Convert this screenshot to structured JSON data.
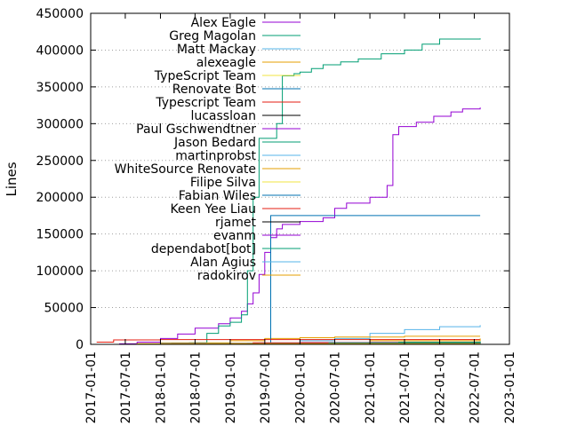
{
  "chart_data": {
    "type": "line",
    "title": "",
    "xlabel": "",
    "ylabel": "Lines",
    "x_axis": {
      "type": "date",
      "range": [
        "2017-01-01",
        "2023-01-01"
      ],
      "ticks": [
        "2017-01-01",
        "2017-07-01",
        "2018-01-01",
        "2018-07-01",
        "2019-01-01",
        "2019-07-01",
        "2020-01-01",
        "2020-07-01",
        "2021-01-01",
        "2021-07-01",
        "2022-01-01",
        "2022-07-01",
        "2023-01-01"
      ]
    },
    "y_axis": {
      "range": [
        0,
        450000
      ],
      "ticks": [
        0,
        50000,
        100000,
        150000,
        200000,
        250000,
        300000,
        350000,
        400000,
        450000
      ]
    },
    "grid": "y-dotted",
    "legend_position": "top-left",
    "series": [
      {
        "name": "Alex Eagle",
        "color": "#9400d3",
        "points": [
          [
            "2017-05-01",
            0
          ],
          [
            "2017-09-01",
            3000
          ],
          [
            "2018-01-01",
            8000
          ],
          [
            "2018-04-01",
            14000
          ],
          [
            "2018-07-01",
            22000
          ],
          [
            "2018-11-01",
            28000
          ],
          [
            "2019-01-01",
            36000
          ],
          [
            "2019-03-01",
            45000
          ],
          [
            "2019-04-01",
            55000
          ],
          [
            "2019-05-01",
            70000
          ],
          [
            "2019-06-01",
            95000
          ],
          [
            "2019-07-01",
            125000
          ],
          [
            "2019-08-01",
            145000
          ],
          [
            "2019-09-01",
            157000
          ],
          [
            "2019-10-01",
            163000
          ],
          [
            "2020-01-01",
            167000
          ],
          [
            "2020-05-01",
            172000
          ],
          [
            "2020-07-01",
            185000
          ],
          [
            "2020-09-01",
            192000
          ],
          [
            "2021-01-01",
            200000
          ],
          [
            "2021-04-01",
            216000
          ],
          [
            "2021-05-01",
            285000
          ],
          [
            "2021-06-01",
            296000
          ],
          [
            "2021-09-01",
            302000
          ],
          [
            "2021-12-01",
            310000
          ],
          [
            "2022-03-01",
            316000
          ],
          [
            "2022-05-01",
            320000
          ],
          [
            "2022-08-01",
            322000
          ]
        ]
      },
      {
        "name": "Greg Magolan",
        "color": "#009e73",
        "points": [
          [
            "2017-10-01",
            0
          ],
          [
            "2018-06-01",
            2000
          ],
          [
            "2018-09-01",
            15000
          ],
          [
            "2018-11-01",
            25000
          ],
          [
            "2019-01-01",
            30000
          ],
          [
            "2019-03-01",
            40000
          ],
          [
            "2019-04-01",
            100000
          ],
          [
            "2019-05-01",
            200000
          ],
          [
            "2019-06-01",
            280000
          ],
          [
            "2019-09-01",
            300000
          ],
          [
            "2019-10-01",
            365000
          ],
          [
            "2019-12-01",
            368000
          ],
          [
            "2020-01-01",
            370000
          ],
          [
            "2020-03-01",
            375000
          ],
          [
            "2020-05-01",
            380000
          ],
          [
            "2020-08-01",
            384000
          ],
          [
            "2020-11-01",
            388000
          ],
          [
            "2021-03-01",
            395000
          ],
          [
            "2021-07-01",
            400000
          ],
          [
            "2021-10-01",
            408000
          ],
          [
            "2022-01-01",
            415000
          ],
          [
            "2022-08-01",
            416000
          ]
        ]
      },
      {
        "name": "Matt Mackay",
        "color": "#56b4e9",
        "points": [
          [
            "2018-01-01",
            0
          ],
          [
            "2019-06-01",
            2000
          ],
          [
            "2020-01-01",
            5000
          ],
          [
            "2020-07-01",
            8000
          ],
          [
            "2021-01-01",
            15000
          ],
          [
            "2021-07-01",
            20000
          ],
          [
            "2022-01-01",
            24000
          ],
          [
            "2022-08-01",
            26000
          ]
        ]
      },
      {
        "name": "alexeagle",
        "color": "#e69f00",
        "points": [
          [
            "2017-07-01",
            0
          ],
          [
            "2018-01-01",
            2000
          ],
          [
            "2019-01-01",
            5000
          ],
          [
            "2019-07-01",
            8000
          ],
          [
            "2020-01-01",
            9000
          ],
          [
            "2020-07-01",
            10000
          ],
          [
            "2021-07-01",
            11000
          ],
          [
            "2022-08-01",
            11000
          ]
        ]
      },
      {
        "name": "TypeScript Team",
        "color": "#f0e442",
        "points": [
          [
            "2017-12-01",
            0
          ],
          [
            "2018-06-01",
            800
          ],
          [
            "2019-06-01",
            1500
          ],
          [
            "2022-08-01",
            2000
          ]
        ]
      },
      {
        "name": "Renovate Bot",
        "color": "#0072b2",
        "points": [
          [
            "2019-07-01",
            0
          ],
          [
            "2019-08-01",
            175000
          ],
          [
            "2022-08-01",
            175000
          ]
        ]
      },
      {
        "name": "Typescript Team",
        "color": "#e51e10",
        "points": [
          [
            "2017-02-01",
            3000
          ],
          [
            "2017-05-01",
            6000
          ],
          [
            "2018-01-01",
            6500
          ],
          [
            "2022-08-01",
            6500
          ]
        ]
      },
      {
        "name": "lucassloan",
        "color": "#000000",
        "points": [
          [
            "2019-04-01",
            0
          ],
          [
            "2019-10-01",
            1500
          ],
          [
            "2021-01-01",
            2500
          ],
          [
            "2022-08-01",
            3500
          ]
        ]
      },
      {
        "name": "Paul Gschwendtner",
        "color": "#9400d3",
        "points": [
          [
            "2018-02-01",
            0
          ],
          [
            "2019-01-01",
            1500
          ],
          [
            "2020-01-01",
            2500
          ],
          [
            "2022-08-01",
            3000
          ]
        ]
      },
      {
        "name": "Jason Bedard",
        "color": "#009e73",
        "points": [
          [
            "2019-06-01",
            0
          ],
          [
            "2020-06-01",
            1500
          ],
          [
            "2021-06-01",
            3000
          ],
          [
            "2022-08-01",
            4000
          ]
        ]
      },
      {
        "name": "martinprobst",
        "color": "#56b4e9",
        "points": [
          [
            "2017-06-01",
            0
          ],
          [
            "2018-01-01",
            1500
          ],
          [
            "2022-08-01",
            2000
          ]
        ]
      },
      {
        "name": "WhiteSource Renovate",
        "color": "#e69f00",
        "points": [
          [
            "2019-05-01",
            0
          ],
          [
            "2020-01-01",
            2000
          ],
          [
            "2021-01-01",
            5000
          ],
          [
            "2022-08-01",
            8000
          ]
        ]
      },
      {
        "name": "Filipe Silva",
        "color": "#f0e442",
        "points": [
          [
            "2017-10-01",
            0
          ],
          [
            "2018-09-01",
            1500
          ],
          [
            "2022-08-01",
            2000
          ]
        ]
      },
      {
        "name": "Fabian Wiles",
        "color": "#0072b2",
        "points": [
          [
            "2018-08-01",
            0
          ],
          [
            "2019-04-01",
            1200
          ],
          [
            "2022-08-01",
            1500
          ]
        ]
      },
      {
        "name": "Keen Yee Liau",
        "color": "#e51e10",
        "points": [
          [
            "2018-10-01",
            0
          ],
          [
            "2019-05-01",
            2000
          ],
          [
            "2022-08-01",
            2500
          ]
        ]
      },
      {
        "name": "rjamet",
        "color": "#000000",
        "points": [
          [
            "2017-08-01",
            0
          ],
          [
            "2018-03-01",
            800
          ],
          [
            "2022-08-01",
            1000
          ]
        ]
      },
      {
        "name": "evanm",
        "color": "#9400d3",
        "points": [
          [
            "2017-03-01",
            0
          ],
          [
            "2017-06-01",
            700
          ],
          [
            "2022-08-01",
            1000
          ]
        ]
      },
      {
        "name": "dependabot[bot]",
        "color": "#009e73",
        "points": [
          [
            "2019-10-01",
            0
          ],
          [
            "2020-06-01",
            2000
          ],
          [
            "2022-08-01",
            3000
          ]
        ]
      },
      {
        "name": "Alan Agius",
        "color": "#56b4e9",
        "points": [
          [
            "2018-06-01",
            0
          ],
          [
            "2019-06-01",
            1000
          ],
          [
            "2022-08-01",
            1500
          ]
        ]
      },
      {
        "name": "radokirov",
        "color": "#e69f00",
        "points": [
          [
            "2017-04-01",
            0
          ],
          [
            "2017-09-01",
            800
          ],
          [
            "2022-08-01",
            1000
          ]
        ]
      }
    ]
  }
}
